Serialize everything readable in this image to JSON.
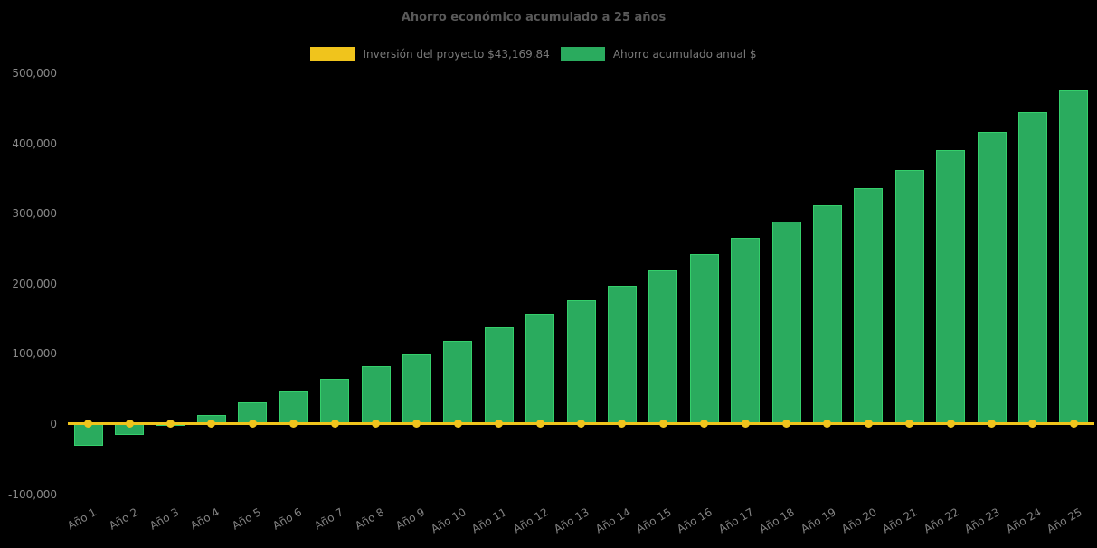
{
  "title": "Ahorro económico acumulado a 25 años",
  "legend": {
    "investment_label": "Inversión del proyecto $43,169.84",
    "savings_label": "Ahorro acumulado anual $"
  },
  "colors": {
    "background": "#000000",
    "bar_fill": "#2aab5e",
    "bar_edge": "#35cf6b",
    "investment_line": "#f0c41c",
    "title_text": "#595959",
    "legend_text": "#7a7a7a",
    "axis_text": "#8a8a8a"
  },
  "chart_data": {
    "type": "bar",
    "title": "Ahorro económico acumulado a 25 años",
    "categories": [
      "Año 1",
      "Año 2",
      "Año 3",
      "Año 4",
      "Año 5",
      "Año 6",
      "Año 7",
      "Año 8",
      "Año 9",
      "Año 10",
      "Año 11",
      "Año 12",
      "Año 13",
      "Año 14",
      "Año 15",
      "Año 16",
      "Año 17",
      "Año 18",
      "Año 19",
      "Año 20",
      "Año 21",
      "Año 22",
      "Año 23",
      "Año 24",
      "Año 25"
    ],
    "series": [
      {
        "name": "Inversión del proyecto $43,169.84",
        "type": "line",
        "color": "#f0c41c",
        "marker": "circle",
        "values": [
          0,
          0,
          0,
          0,
          0,
          0,
          0,
          0,
          0,
          0,
          0,
          0,
          0,
          0,
          0,
          0,
          0,
          0,
          0,
          0,
          0,
          0,
          0,
          0,
          0
        ]
      },
      {
        "name": "Ahorro acumulado anual $",
        "type": "bar",
        "color": "#2aab5e",
        "values": [
          -31000,
          -16000,
          -2000,
          13000,
          31000,
          47500,
          64000,
          83000,
          99000,
          118000,
          137500,
          157000,
          177000,
          197000,
          219500,
          242000,
          265000,
          288500,
          312000,
          336500,
          362500,
          391000,
          416500,
          444000,
          475000
        ]
      }
    ],
    "investment_value_shown_in_legend": "$43,169.84",
    "xlabel": "",
    "ylabel": "",
    "ylim": [
      -100000,
      500000
    ],
    "yticks": [
      -100000,
      0,
      100000,
      200000,
      300000,
      400000,
      500000
    ],
    "ytick_labels": [
      "-100,000",
      "0",
      "100,000",
      "200,000",
      "300,000",
      "400,000",
      "500,000"
    ],
    "grid": false,
    "legend_position": "top-center",
    "xtick_rotation_deg": 30
  }
}
